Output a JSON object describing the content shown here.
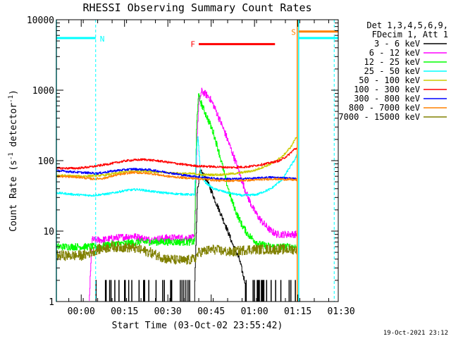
{
  "chart_data": {
    "type": "line",
    "title": "RHESSI Observing Summary Count Rates",
    "xlabel": "Start Time (03-Oct-02 23:55:42)",
    "ylabel": "Count Rate (s⁻¹ detector⁻¹)",
    "ylabel_parts": {
      "main": "Count Rate (s",
      "sup1": "-1",
      "mid": " detector",
      "sup2": "-1",
      "end": ")"
    },
    "y_scale": "log",
    "xlim": [
      -4.3,
      93.3
    ],
    "ylim": [
      1,
      10000
    ],
    "grid": false,
    "x_tick_labels": [
      {
        "label": "00:00",
        "x": 4.3
      },
      {
        "label": "00:15",
        "x": 19.3
      },
      {
        "label": "00:30",
        "x": 34.3
      },
      {
        "label": "00:45",
        "x": 49.3
      },
      {
        "label": "01:00",
        "x": 64.3
      },
      {
        "label": "01:15",
        "x": 79.3
      },
      {
        "label": "01:30",
        "x": 94.3
      }
    ],
    "y_tick_labels": [
      {
        "label": "1",
        "y": 1
      },
      {
        "label": "10",
        "y": 10
      },
      {
        "label": "100",
        "y": 100
      },
      {
        "label": "1000",
        "y": 1000
      },
      {
        "label": "10000",
        "y": 10000
      }
    ],
    "legend": {
      "placement": "right",
      "header": [
        "Det 1,3,4,5,6,9,",
        "FDecim 1, Att 1"
      ],
      "entries": [
        {
          "label": "3 - 6 keV",
          "color": "#000000"
        },
        {
          "label": "6 - 12 keV",
          "color": "#ff00ff"
        },
        {
          "label": "12 - 25 keV",
          "color": "#00ff00"
        },
        {
          "label": "25 - 50 keV",
          "color": "#00ffff"
        },
        {
          "label": "50 - 100 keV",
          "color": "#cccc00"
        },
        {
          "label": "100 - 300 keV",
          "color": "#ff0000"
        },
        {
          "label": "300 - 800 keV",
          "color": "#0000ff"
        },
        {
          "label": "800 - 7000 keV",
          "color": "#ff8000"
        },
        {
          "label": "7000 - 15000 keV",
          "color": "#808000"
        }
      ]
    },
    "annotations": [
      {
        "text": "N",
        "type": "night",
        "color": "#00ffff",
        "x_start": -4.3,
        "x_end": 9.3,
        "y": 5500
      },
      {
        "text": "F",
        "type": "flare",
        "color": "#ff0000",
        "x_start": 45.0,
        "x_end": 71.4,
        "y": 4500
      },
      {
        "text": "S",
        "type": "saa",
        "color": "#ff8000",
        "x_start": 79.6,
        "x_end": 93.3,
        "y": 6800
      }
    ],
    "night_band": {
      "color": "#00ffff",
      "x_start": 79.6,
      "x_end": 93.3,
      "y": 5500
    },
    "vertical_markers": [
      {
        "x": -4.3,
        "style": "solid",
        "color": "#00ffff"
      },
      {
        "x": 9.3,
        "style": "dashed",
        "color": "#00ffff"
      },
      {
        "x": 79.1,
        "style": "solid",
        "color": "#ff8000"
      },
      {
        "x": 79.6,
        "style": "solid",
        "color": "#00ffff"
      },
      {
        "x": 91.9,
        "style": "dashed",
        "color": "#00ffff"
      }
    ],
    "x_range": [
      -4.3,
      79.0
    ],
    "series": [
      {
        "name": "3 - 6 keV",
        "color": "#000000",
        "gap_until": 7.0,
        "noise": 0.0,
        "quantize": true,
        "points": [
          [
            7,
            1
          ],
          [
            12,
            1
          ],
          [
            20,
            1
          ],
          [
            30,
            1.3
          ],
          [
            38,
            1.4
          ],
          [
            43.5,
            1.4
          ],
          [
            44.5,
            40
          ],
          [
            45.5,
            70
          ],
          [
            47,
            60
          ],
          [
            49,
            40
          ],
          [
            51,
            25
          ],
          [
            53,
            16
          ],
          [
            55,
            10
          ],
          [
            57,
            6
          ],
          [
            59,
            4
          ],
          [
            60.5,
            2.2
          ],
          [
            62,
            1.5
          ],
          [
            66,
            1.3
          ],
          [
            70,
            1.3
          ],
          [
            75,
            1.3
          ],
          [
            77.5,
            1.3
          ],
          [
            79,
            1
          ]
        ]
      },
      {
        "name": "6 - 12 keV",
        "color": "#ff00ff",
        "gap_until": 7.0,
        "noise": 0.05,
        "points": [
          [
            7,
            1
          ],
          [
            8,
            7.5
          ],
          [
            12,
            7.5
          ],
          [
            16,
            8
          ],
          [
            22,
            8.5
          ],
          [
            28,
            7.5
          ],
          [
            34,
            8
          ],
          [
            40,
            8
          ],
          [
            43.5,
            8
          ],
          [
            44.3,
            200
          ],
          [
            45,
            700
          ],
          [
            46,
            960
          ],
          [
            47,
            900
          ],
          [
            48.5,
            800
          ],
          [
            50,
            620
          ],
          [
            52,
            400
          ],
          [
            54,
            250
          ],
          [
            56,
            150
          ],
          [
            58,
            90
          ],
          [
            60,
            50
          ],
          [
            62,
            30
          ],
          [
            64,
            20
          ],
          [
            66,
            15
          ],
          [
            68,
            12
          ],
          [
            70,
            10
          ],
          [
            72,
            9
          ],
          [
            74,
            9
          ],
          [
            76,
            9
          ],
          [
            78,
            9
          ],
          [
            79,
            9
          ]
        ]
      },
      {
        "name": "12 - 25 keV",
        "color": "#00ff00",
        "noise": 0.05,
        "points": [
          [
            -4.3,
            6
          ],
          [
            10,
            6
          ],
          [
            15,
            6.5
          ],
          [
            25,
            7
          ],
          [
            35,
            7
          ],
          [
            43.5,
            7
          ],
          [
            44.2,
            300
          ],
          [
            44.8,
            850
          ],
          [
            45.5,
            700
          ],
          [
            46.5,
            550
          ],
          [
            48,
            400
          ],
          [
            50,
            250
          ],
          [
            52,
            130
          ],
          [
            54,
            60
          ],
          [
            56,
            30
          ],
          [
            58,
            18
          ],
          [
            60,
            12
          ],
          [
            62,
            9
          ],
          [
            64,
            7.5
          ],
          [
            66,
            6.5
          ],
          [
            70,
            6
          ],
          [
            74,
            6
          ],
          [
            78,
            6
          ],
          [
            79,
            6
          ]
        ]
      },
      {
        "name": "25 - 50 keV",
        "color": "#00ffff",
        "noise": 0.015,
        "points": [
          [
            -4.3,
            35
          ],
          [
            2,
            33
          ],
          [
            8,
            32
          ],
          [
            14,
            34
          ],
          [
            20,
            38
          ],
          [
            24,
            39
          ],
          [
            30,
            36
          ],
          [
            36,
            34
          ],
          [
            42,
            33
          ],
          [
            43.5,
            33
          ],
          [
            44.2,
            150
          ],
          [
            44.7,
            220
          ],
          [
            45.5,
            70
          ],
          [
            47,
            50
          ],
          [
            50,
            40
          ],
          [
            55,
            35
          ],
          [
            60,
            32
          ],
          [
            65,
            33
          ],
          [
            70,
            40
          ],
          [
            74,
            55
          ],
          [
            76,
            75
          ],
          [
            78,
            100
          ],
          [
            79,
            120
          ]
        ]
      },
      {
        "name": "50 - 100 keV",
        "color": "#cccc00",
        "noise": 0.015,
        "points": [
          [
            -4.3,
            62
          ],
          [
            4,
            60
          ],
          [
            12,
            62
          ],
          [
            20,
            70
          ],
          [
            26,
            72
          ],
          [
            32,
            68
          ],
          [
            38,
            66
          ],
          [
            44,
            65
          ],
          [
            46,
            63
          ],
          [
            52,
            63
          ],
          [
            58,
            66
          ],
          [
            64,
            72
          ],
          [
            70,
            90
          ],
          [
            74,
            115
          ],
          [
            77,
            160
          ],
          [
            78.5,
            210
          ],
          [
            79,
            220
          ]
        ]
      },
      {
        "name": "100 - 300 keV",
        "color": "#ff0000",
        "noise": 0.015,
        "points": [
          [
            -4.3,
            78
          ],
          [
            3,
            78
          ],
          [
            8,
            82
          ],
          [
            14,
            90
          ],
          [
            20,
            100
          ],
          [
            26,
            104
          ],
          [
            32,
            98
          ],
          [
            38,
            90
          ],
          [
            44,
            84
          ],
          [
            50,
            82
          ],
          [
            56,
            80
          ],
          [
            62,
            82
          ],
          [
            68,
            90
          ],
          [
            73,
            100
          ],
          [
            76,
            120
          ],
          [
            78,
            145
          ],
          [
            79,
            150
          ]
        ]
      },
      {
        "name": "300 - 800 keV",
        "color": "#0000ff",
        "noise": 0.015,
        "points": [
          [
            -4.3,
            72
          ],
          [
            4,
            68
          ],
          [
            10,
            66
          ],
          [
            16,
            72
          ],
          [
            22,
            76
          ],
          [
            28,
            74
          ],
          [
            34,
            68
          ],
          [
            40,
            62
          ],
          [
            46,
            58
          ],
          [
            52,
            55
          ],
          [
            58,
            55
          ],
          [
            64,
            56
          ],
          [
            70,
            58
          ],
          [
            76,
            56
          ],
          [
            79,
            55
          ]
        ]
      },
      {
        "name": "800 - 7000 keV",
        "color": "#ff8000",
        "noise": 0.015,
        "points": [
          [
            -4.3,
            60
          ],
          [
            4,
            58
          ],
          [
            8,
            55
          ],
          [
            12,
            56
          ],
          [
            16,
            62
          ],
          [
            22,
            68
          ],
          [
            28,
            66
          ],
          [
            34,
            60
          ],
          [
            40,
            57
          ],
          [
            46,
            55
          ],
          [
            52,
            52
          ],
          [
            58,
            52
          ],
          [
            64,
            53
          ],
          [
            70,
            55
          ],
          [
            76,
            54
          ],
          [
            79,
            53
          ]
        ]
      },
      {
        "name": "7000 - 15000 keV",
        "color": "#808000",
        "noise": 0.07,
        "points": [
          [
            -4.3,
            4.5
          ],
          [
            5,
            4.5
          ],
          [
            10,
            5.5
          ],
          [
            15,
            6
          ],
          [
            22,
            5.8
          ],
          [
            28,
            5
          ],
          [
            34,
            4
          ],
          [
            40,
            3.8
          ],
          [
            43.5,
            4
          ],
          [
            45,
            5
          ],
          [
            50,
            5.5
          ],
          [
            56,
            5
          ],
          [
            62,
            5.5
          ],
          [
            68,
            5.5
          ],
          [
            74,
            5.5
          ],
          [
            79,
            5.5
          ]
        ]
      }
    ]
  },
  "timestamp": "19-Oct-2021 23:12"
}
